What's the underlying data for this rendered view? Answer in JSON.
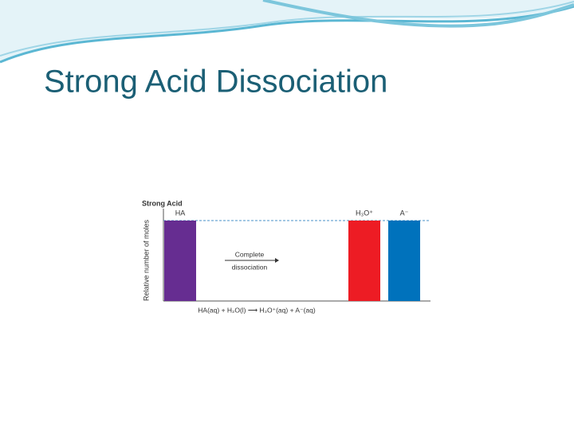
{
  "slide": {
    "title": "Strong Acid Dissociation"
  },
  "chart_data": {
    "type": "bar",
    "title": "Strong Acid",
    "y_label": "Relative number of moles",
    "categories": [
      "HA",
      "H₃O⁺",
      "A⁻"
    ],
    "values": [
      1,
      1,
      1
    ],
    "colors": [
      "#662d91",
      "#ed1c24",
      "#0072bc"
    ],
    "ylim": [
      0,
      1
    ],
    "annotation": [
      "Complete",
      "dissociation"
    ],
    "equation": "HA(aq) + H₂O(l) ⟶ H₃O⁺(aq) + A⁻(aq)"
  }
}
